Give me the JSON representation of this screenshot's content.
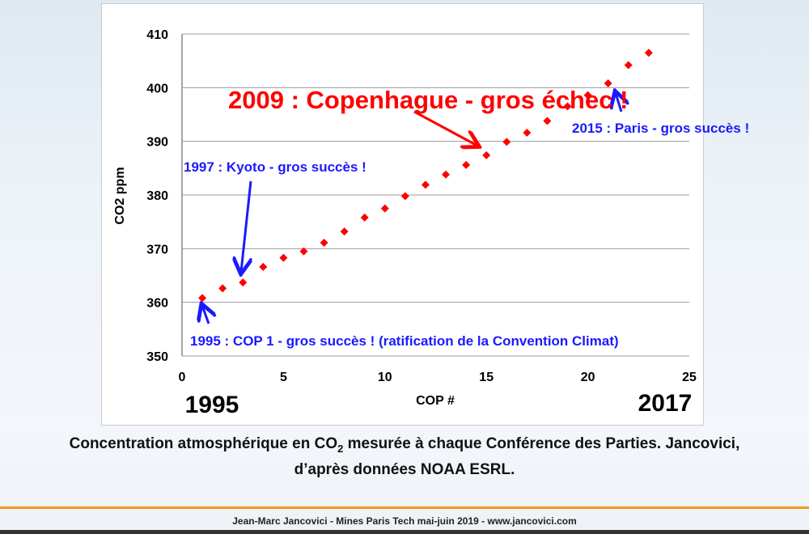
{
  "chart_data": {
    "type": "scatter",
    "xlabel": "COP #",
    "ylabel": "CO2 ppm",
    "xlim": [
      0,
      25
    ],
    "ylim": [
      350,
      410
    ],
    "xticks": [
      0,
      5,
      10,
      15,
      20,
      25
    ],
    "yticks": [
      350,
      360,
      370,
      380,
      390,
      400,
      410
    ],
    "grid": true,
    "x": [
      1,
      2,
      3,
      4,
      5,
      6,
      7,
      8,
      9,
      10,
      11,
      12,
      13,
      14,
      15,
      16,
      17,
      18,
      19,
      20,
      21,
      22,
      23
    ],
    "y": [
      360.8,
      362.6,
      363.7,
      366.6,
      368.3,
      369.5,
      371.1,
      373.2,
      375.8,
      377.5,
      379.8,
      381.9,
      383.8,
      385.6,
      387.4,
      389.9,
      391.6,
      393.8,
      396.5,
      398.6,
      400.8,
      404.2,
      406.5
    ],
    "marker_color": "#ff0000",
    "year_start": "1995",
    "year_end": "2017",
    "annotations": [
      {
        "text": "2009 : Copenhague - gros échec !",
        "color": "#ff0000"
      },
      {
        "text": "2015 : Paris - gros succès !",
        "color": "#1a1aff"
      },
      {
        "text": "1997 : Kyoto - gros succès !",
        "color": "#1a1aff"
      },
      {
        "text": "1995 : COP 1 - gros succès ! (ratification de la Convention Climat)",
        "color": "#1a1aff"
      }
    ]
  },
  "caption": {
    "line1_a": "Concentration atmosphérique en CO",
    "line1_sub": "2",
    "line1_b": " mesurée à chaque Conférence des Parties. Jancovici,",
    "line2": "d’après données NOAA ESRL."
  },
  "footer": "Jean-Marc Jancovici - Mines Paris Tech mai-juin 2019 - www.jancovici.com"
}
